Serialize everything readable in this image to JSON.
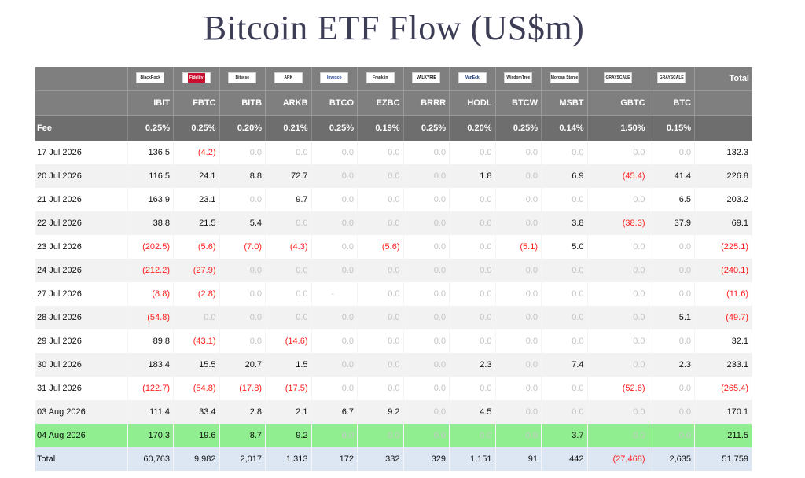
{
  "title": "Bitcoin ETF Flow (US$m)",
  "header": {
    "total_label": "Total",
    "fee_label": "Fee",
    "funds": [
      {
        "issuer": "BlackRock",
        "ticker": "IBIT",
        "fee": "0.25%",
        "logo_style": "plain"
      },
      {
        "issuer": "Fidelity",
        "ticker": "FBTC",
        "fee": "0.25%",
        "logo_style": "fid"
      },
      {
        "issuer": "Bitwise",
        "ticker": "BITB",
        "fee": "0.20%",
        "logo_style": "plain"
      },
      {
        "issuer": "ARK",
        "ticker": "ARKB",
        "fee": "0.21%",
        "logo_style": "plain"
      },
      {
        "issuer": "Invesco",
        "ticker": "BTCO",
        "fee": "0.25%",
        "logo_style": "inv"
      },
      {
        "issuer": "Franklin",
        "ticker": "EZBC",
        "fee": "0.19%",
        "logo_style": "plain"
      },
      {
        "issuer": "VALKYRIE",
        "ticker": "BRRR",
        "fee": "0.25%",
        "logo_style": "vk"
      },
      {
        "issuer": "VanEck",
        "ticker": "HODL",
        "fee": "0.20%",
        "logo_style": "ve"
      },
      {
        "issuer": "WisdomTree",
        "ticker": "BTCW",
        "fee": "0.25%",
        "logo_style": "plain"
      },
      {
        "issuer": "Morgan Stanley",
        "ticker": "MSBT",
        "fee": "0.14%",
        "logo_style": "plain"
      },
      {
        "issuer": "GRAYSCALE",
        "ticker": "GBTC",
        "fee": "1.50%",
        "logo_style": "plain"
      },
      {
        "issuer": "GRAYSCALE",
        "ticker": "BTC",
        "fee": "0.15%",
        "logo_style": "plain"
      }
    ]
  },
  "rows": [
    {
      "date": "17 Jul 2026",
      "values": [
        "136.5",
        "(4.2)",
        "0.0",
        "0.0",
        "0.0",
        "0.0",
        "0.0",
        "0.0",
        "0.0",
        "0.0",
        "0.0",
        "0.0"
      ],
      "total": "132.3"
    },
    {
      "date": "20 Jul 2026",
      "values": [
        "116.5",
        "24.1",
        "8.8",
        "72.7",
        "0.0",
        "0.0",
        "0.0",
        "1.8",
        "0.0",
        "6.9",
        "(45.4)",
        "41.4"
      ],
      "total": "226.8"
    },
    {
      "date": "21 Jul 2026",
      "values": [
        "163.9",
        "23.1",
        "0.0",
        "9.7",
        "0.0",
        "0.0",
        "0.0",
        "0.0",
        "0.0",
        "0.0",
        "0.0",
        "6.5"
      ],
      "total": "203.2"
    },
    {
      "date": "22 Jul 2026",
      "values": [
        "38.8",
        "21.5",
        "5.4",
        "0.0",
        "0.0",
        "0.0",
        "0.0",
        "0.0",
        "0.0",
        "3.8",
        "(38.3)",
        "37.9"
      ],
      "total": "69.1"
    },
    {
      "date": "23 Jul 2026",
      "values": [
        "(202.5)",
        "(5.6)",
        "(7.0)",
        "(4.3)",
        "0.0",
        "(5.6)",
        "0.0",
        "0.0",
        "(5.1)",
        "5.0",
        "0.0",
        "0.0"
      ],
      "total": "(225.1)"
    },
    {
      "date": "24 Jul 2026",
      "values": [
        "(212.2)",
        "(27.9)",
        "0.0",
        "0.0",
        "0.0",
        "0.0",
        "0.0",
        "0.0",
        "0.0",
        "0.0",
        "0.0",
        "0.0"
      ],
      "total": "(240.1)"
    },
    {
      "date": "27 Jul 2026",
      "values": [
        "(8.8)",
        "(2.8)",
        "0.0",
        "0.0",
        "-",
        "0.0",
        "0.0",
        "0.0",
        "0.0",
        "0.0",
        "0.0",
        "0.0"
      ],
      "total": "(11.6)"
    },
    {
      "date": "28 Jul 2026",
      "values": [
        "(54.8)",
        "0.0",
        "0.0",
        "0.0",
        "0.0",
        "0.0",
        "0.0",
        "0.0",
        "0.0",
        "0.0",
        "0.0",
        "5.1"
      ],
      "total": "(49.7)"
    },
    {
      "date": "29 Jul 2026",
      "values": [
        "89.8",
        "(43.1)",
        "0.0",
        "(14.6)",
        "0.0",
        "0.0",
        "0.0",
        "0.0",
        "0.0",
        "0.0",
        "0.0",
        "0.0"
      ],
      "total": "32.1"
    },
    {
      "date": "30 Jul 2026",
      "values": [
        "183.4",
        "15.5",
        "20.7",
        "1.5",
        "0.0",
        "0.0",
        "0.0",
        "2.3",
        "0.0",
        "7.4",
        "0.0",
        "2.3"
      ],
      "total": "233.1"
    },
    {
      "date": "31 Jul 2026",
      "values": [
        "(122.7)",
        "(54.8)",
        "(17.8)",
        "(17.5)",
        "0.0",
        "0.0",
        "0.0",
        "0.0",
        "0.0",
        "0.0",
        "(52.6)",
        "0.0"
      ],
      "total": "(265.4)"
    },
    {
      "date": "03 Aug 2026",
      "values": [
        "111.4",
        "33.4",
        "2.8",
        "2.1",
        "6.7",
        "9.2",
        "0.0",
        "4.5",
        "0.0",
        "0.0",
        "0.0",
        "0.0"
      ],
      "total": "170.1"
    },
    {
      "date": "04 Aug 2026",
      "values": [
        "170.3",
        "19.6",
        "8.7",
        "9.2",
        "0.0",
        "0.0",
        "0.0",
        "0.0",
        "0.0",
        "3.7",
        "0.0",
        "0.0"
      ],
      "total": "211.5",
      "highlight": true
    }
  ],
  "totals": {
    "label": "Total",
    "values": [
      "60,763",
      "9,982",
      "2,017",
      "1,313",
      "172",
      "332",
      "329",
      "1,151",
      "91",
      "442",
      "(27,468)",
      "2,635"
    ],
    "total": "51,759"
  },
  "colors": {
    "header_bg": "#7f7f7f",
    "fee_bg": "#6e6e6e",
    "negative": "#ff2020",
    "zero": "#c4c4c4",
    "highlight_row": "#90ee90",
    "total_row": "#dde6f3"
  }
}
